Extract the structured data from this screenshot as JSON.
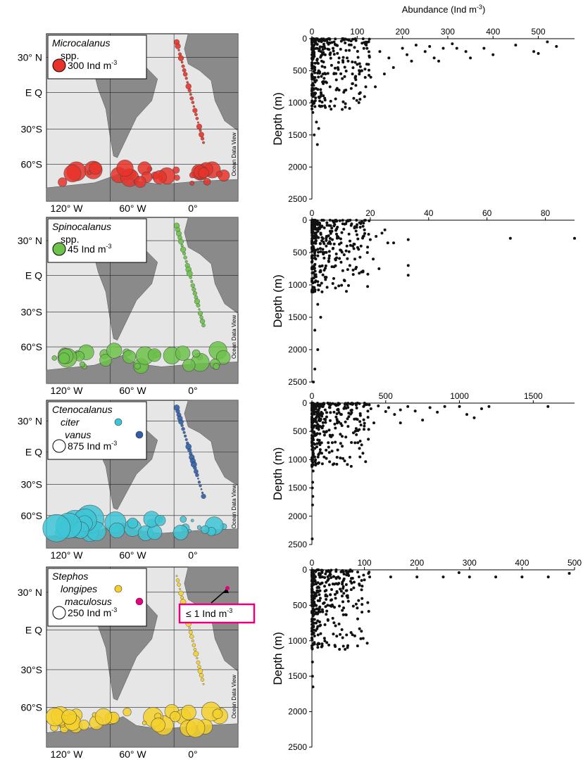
{
  "figure": {
    "top_axis_title": "Abundance (Ind m",
    "top_axis_title_sup": "-3",
    "top_axis_title_end": ")",
    "ocean_data_view": "Ocean Data View",
    "map_lat_labels": [
      "30° N",
      "E Q",
      "30°S",
      "60°S"
    ],
    "map_lon_labels": [
      "120° W",
      "60° W",
      "0°"
    ],
    "depth_label": "Depth (m)",
    "colors": {
      "red": "#e8332a",
      "green": "#6cc24a",
      "cyan": "#3ec6d6",
      "navy": "#2f5fa8",
      "yellow": "#f6d12b",
      "magenta": "#e6007e",
      "land": "#8a8a8a",
      "sea": "#e6e6e6",
      "dots": "#111111"
    }
  },
  "panels": [
    {
      "legend": {
        "genus": "Microcalanus",
        "species_lines": [
          "spp."
        ],
        "scale_value": "300 Ind m",
        "scale_sup": "-3",
        "symbol_color": "#e8332a"
      }
    },
    {
      "legend": {
        "genus": "Spinocalanus",
        "species_lines": [
          "spp."
        ],
        "scale_value": "45 Ind m",
        "scale_sup": "-3",
        "symbol_color": "#6cc24a"
      }
    },
    {
      "legend": {
        "genus": "Ctenocalanus",
        "species_lines": [
          "citer",
          "vanus"
        ],
        "species_colors": [
          "#3ec6d6",
          "#2f5fa8"
        ],
        "scale_value": "875 Ind m",
        "scale_sup": "-3",
        "symbol_color": "none"
      }
    },
    {
      "legend": {
        "genus": "Stephos",
        "species_lines": [
          "longipes",
          "maculosus"
        ],
        "species_colors": [
          "#f6d12b",
          "#e6007e"
        ],
        "scale_value": "250 Ind m",
        "scale_sup": "-3",
        "symbol_color": "none"
      },
      "callout": {
        "text": "≤ 1 Ind m",
        "sup": "-3"
      }
    }
  ],
  "chart_data": [
    {
      "type": "scatter",
      "title": "Microcalanus spp.",
      "xlabel": "Abundance (Ind m-3)",
      "ylabel": "Depth (m)",
      "xlim": [
        0,
        580
      ],
      "ylim": [
        2500,
        0
      ],
      "x_ticks": [
        0,
        100,
        200,
        300,
        400,
        500
      ],
      "y_ticks": [
        0,
        500,
        1000,
        1500,
        2000,
        2500
      ],
      "x_axis_position": "top",
      "points": [
        [
          0,
          50
        ],
        [
          5,
          100
        ],
        [
          10,
          150
        ],
        [
          20,
          200
        ],
        [
          40,
          250
        ],
        [
          60,
          300
        ],
        [
          80,
          350
        ],
        [
          100,
          400
        ],
        [
          5,
          450
        ],
        [
          15,
          500
        ],
        [
          30,
          550
        ],
        [
          3,
          600
        ],
        [
          10,
          650
        ],
        [
          25,
          700
        ],
        [
          40,
          750
        ],
        [
          60,
          800
        ],
        [
          8,
          850
        ],
        [
          3,
          900
        ],
        [
          5,
          1000
        ],
        [
          2,
          1150
        ],
        [
          10,
          1300
        ],
        [
          15,
          1400
        ],
        [
          5,
          1500
        ],
        [
          12,
          1650
        ],
        [
          120,
          100
        ],
        [
          150,
          200
        ],
        [
          170,
          300
        ],
        [
          200,
          150
        ],
        [
          210,
          250
        ],
        [
          220,
          350
        ],
        [
          230,
          100
        ],
        [
          250,
          200
        ],
        [
          260,
          120
        ],
        [
          270,
          300
        ],
        [
          280,
          350
        ],
        [
          290,
          150
        ],
        [
          310,
          80
        ],
        [
          320,
          150
        ],
        [
          340,
          200
        ],
        [
          350,
          300
        ],
        [
          380,
          150
        ],
        [
          400,
          250
        ],
        [
          450,
          100
        ],
        [
          490,
          200
        ],
        [
          500,
          230
        ],
        [
          520,
          50
        ],
        [
          540,
          120
        ],
        [
          110,
          500
        ],
        [
          130,
          600
        ],
        [
          90,
          700
        ],
        [
          140,
          750
        ],
        [
          75,
          800
        ],
        [
          125,
          400
        ],
        [
          180,
          450
        ],
        [
          160,
          550
        ]
      ]
    },
    {
      "type": "scatter",
      "title": "Spinocalanus spp.",
      "xlabel": "Abundance (Ind m-3)",
      "ylabel": "Depth (m)",
      "xlim": [
        0,
        90
      ],
      "ylim": [
        2500,
        0
      ],
      "x_ticks": [
        0,
        20,
        40,
        60,
        80
      ],
      "y_ticks": [
        0,
        500,
        1000,
        1500,
        2000,
        2500
      ],
      "points": [
        [
          0.5,
          50
        ],
        [
          1,
          100
        ],
        [
          2,
          150
        ],
        [
          3,
          200
        ],
        [
          5,
          250
        ],
        [
          7,
          300
        ],
        [
          10,
          350
        ],
        [
          12,
          400
        ],
        [
          2,
          450
        ],
        [
          4,
          500
        ],
        [
          6,
          550
        ],
        [
          8,
          600
        ],
        [
          10,
          650
        ],
        [
          13,
          700
        ],
        [
          15,
          750
        ],
        [
          17,
          800
        ],
        [
          1,
          850
        ],
        [
          2,
          950
        ],
        [
          1,
          1100
        ],
        [
          2,
          1300
        ],
        [
          3,
          1500
        ],
        [
          1,
          1700
        ],
        [
          2,
          2000
        ],
        [
          1,
          2300
        ],
        [
          0.5,
          2500
        ],
        [
          18,
          150
        ],
        [
          20,
          300
        ],
        [
          22,
          250
        ],
        [
          24,
          200
        ],
        [
          25,
          150
        ],
        [
          26,
          350
        ],
        [
          28,
          350
        ],
        [
          33,
          300
        ],
        [
          33,
          700
        ],
        [
          33,
          850
        ],
        [
          68,
          280
        ],
        [
          90,
          280
        ],
        [
          14,
          400
        ],
        [
          16,
          450
        ],
        [
          19,
          500
        ],
        [
          21,
          600
        ],
        [
          23,
          750
        ]
      ]
    },
    {
      "type": "scatter",
      "title": "Ctenocalanus",
      "xlabel": "Abundance (Ind m-3)",
      "ylabel": "Depth (m)",
      "xlim": [
        0,
        1780
      ],
      "ylim": [
        2500,
        0
      ],
      "x_ticks": [
        0,
        500,
        1000,
        1500
      ],
      "y_ticks": [
        0,
        500,
        1000,
        1500,
        2000,
        2500
      ],
      "points": [
        [
          5,
          30
        ],
        [
          20,
          60
        ],
        [
          50,
          90
        ],
        [
          90,
          120
        ],
        [
          150,
          160
        ],
        [
          200,
          200
        ],
        [
          250,
          240
        ],
        [
          300,
          280
        ],
        [
          20,
          320
        ],
        [
          40,
          380
        ],
        [
          70,
          440
        ],
        [
          100,
          500
        ],
        [
          30,
          560
        ],
        [
          10,
          650
        ],
        [
          50,
          700
        ],
        [
          20,
          800
        ],
        [
          10,
          900
        ],
        [
          5,
          1000
        ],
        [
          8,
          1200
        ],
        [
          5,
          1400
        ],
        [
          3,
          1500
        ],
        [
          6,
          1650
        ],
        [
          4,
          1800
        ],
        [
          2,
          2400
        ],
        [
          350,
          60
        ],
        [
          400,
          100
        ],
        [
          450,
          50
        ],
        [
          500,
          150
        ],
        [
          520,
          80
        ],
        [
          560,
          200
        ],
        [
          600,
          120
        ],
        [
          650,
          60
        ],
        [
          700,
          140
        ],
        [
          750,
          300
        ],
        [
          800,
          80
        ],
        [
          850,
          160
        ],
        [
          900,
          60
        ],
        [
          1000,
          60
        ],
        [
          1050,
          200
        ],
        [
          1100,
          260
        ],
        [
          1150,
          100
        ],
        [
          1200,
          60
        ],
        [
          1600,
          60
        ],
        [
          380,
          250
        ],
        [
          420,
          350
        ],
        [
          300,
          450
        ],
        [
          600,
          350
        ],
        [
          230,
          600
        ]
      ]
    },
    {
      "type": "scatter",
      "title": "Stephos",
      "xlabel": "Abundance (Ind m-3)",
      "ylabel": "Depth (m)",
      "xlim": [
        0,
        500
      ],
      "ylim": [
        2500,
        0
      ],
      "x_ticks": [
        0,
        100,
        200,
        300,
        400,
        500
      ],
      "y_ticks": [
        0,
        500,
        1000,
        1500,
        2000,
        2500
      ],
      "points": [
        [
          2,
          50
        ],
        [
          4,
          100
        ],
        [
          6,
          150
        ],
        [
          8,
          200
        ],
        [
          10,
          250
        ],
        [
          12,
          300
        ],
        [
          14,
          350
        ],
        [
          16,
          400
        ],
        [
          3,
          450
        ],
        [
          6,
          500
        ],
        [
          9,
          550
        ],
        [
          12,
          600
        ],
        [
          2,
          650
        ],
        [
          5,
          700
        ],
        [
          8,
          750
        ],
        [
          11,
          800
        ],
        [
          4,
          850
        ],
        [
          2,
          900
        ],
        [
          1,
          1300
        ],
        [
          1,
          1500
        ],
        [
          2,
          1650
        ],
        [
          20,
          100
        ],
        [
          30,
          150
        ],
        [
          40,
          200
        ],
        [
          50,
          100
        ],
        [
          60,
          150
        ],
        [
          70,
          80
        ],
        [
          75,
          120
        ],
        [
          90,
          200
        ],
        [
          110,
          100
        ],
        [
          150,
          100
        ],
        [
          200,
          100
        ],
        [
          250,
          100
        ],
        [
          280,
          40
        ],
        [
          300,
          100
        ],
        [
          350,
          100
        ],
        [
          400,
          100
        ],
        [
          450,
          100
        ],
        [
          490,
          50
        ],
        [
          25,
          300
        ],
        [
          35,
          350
        ],
        [
          45,
          400
        ],
        [
          30,
          500
        ]
      ]
    }
  ]
}
